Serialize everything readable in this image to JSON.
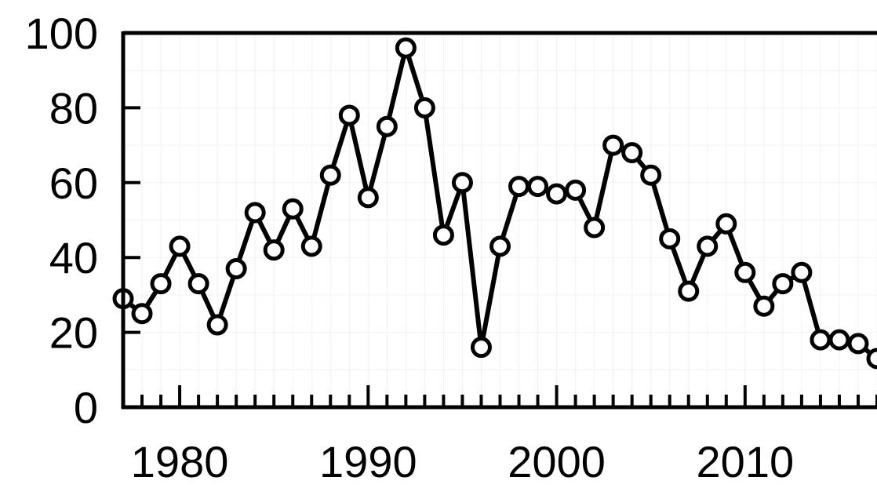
{
  "chart_data": {
    "type": "line",
    "title": "",
    "xlabel": "",
    "ylabel": "",
    "x": [
      1977,
      1978,
      1979,
      1980,
      1981,
      1982,
      1983,
      1984,
      1985,
      1986,
      1987,
      1988,
      1989,
      1990,
      1991,
      1992,
      1993,
      1994,
      1995,
      1996,
      1997,
      1998,
      1999,
      2000,
      2001,
      2002,
      2003,
      2004,
      2005,
      2006,
      2007,
      2008,
      2009,
      2010,
      2011,
      2012,
      2013,
      2014,
      2015,
      2016,
      2017
    ],
    "series": [
      {
        "values": [
          29,
          25,
          33,
          43,
          33,
          22,
          37,
          52,
          42,
          53,
          43,
          62,
          78,
          56,
          75,
          96,
          80,
          46,
          60,
          16,
          43,
          59,
          59,
          57,
          58,
          48,
          70,
          68,
          62,
          45,
          31,
          43,
          49,
          36,
          27,
          33,
          36,
          18,
          18,
          17,
          13
        ]
      }
    ],
    "xlim": [
      1977,
      2017
    ],
    "ylim": [
      0,
      100
    ],
    "x_ticks": [
      1980,
      1990,
      2000,
      2010
    ],
    "y_ticks": [
      0,
      20,
      40,
      60,
      80,
      100
    ],
    "x_tick_labels": [
      "1980",
      "1990",
      "2000",
      "2010"
    ],
    "y_tick_labels": [
      "0",
      "20",
      "40",
      "60",
      "80",
      "100"
    ],
    "grid": true,
    "marker": "open-circle",
    "line_color": "#000000",
    "marker_fill": "#ffffff"
  }
}
